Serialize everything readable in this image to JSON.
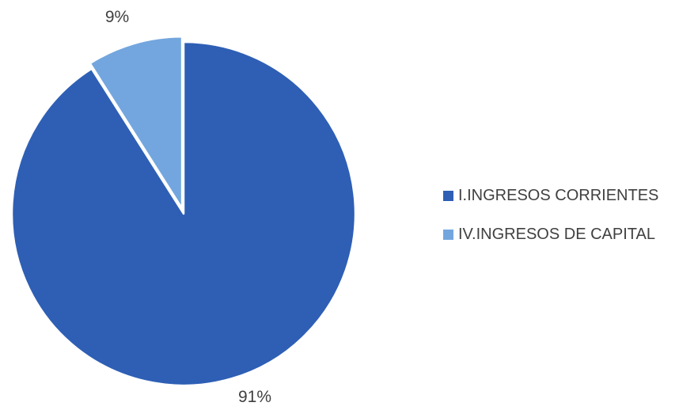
{
  "chart_data": {
    "type": "pie",
    "categories": [
      "I.INGRESOS CORRIENTES",
      "IV.INGRESOS DE CAPITAL"
    ],
    "values": [
      91,
      9
    ],
    "labels": [
      "91%",
      "9%"
    ],
    "colors": [
      "#2e5fb5",
      "#73a6de"
    ],
    "start_angle": "12 o'clock, slices clockwise",
    "exploded_slice": "IV.INGRESOS DE CAPITAL",
    "legend_position": "right"
  }
}
